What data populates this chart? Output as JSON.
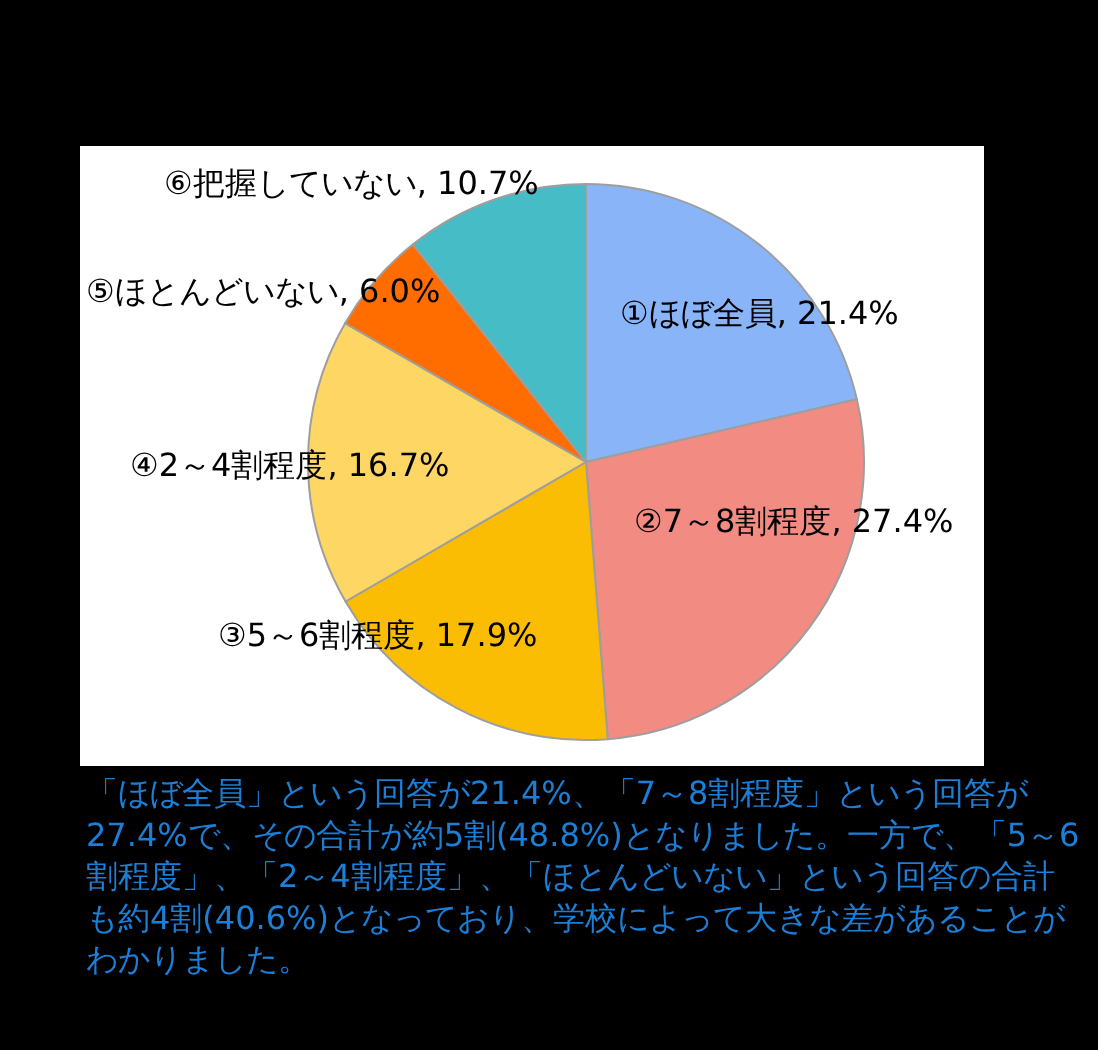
{
  "chart_data": {
    "type": "pie",
    "categories": [
      "①ほぼ全員",
      "②7～8割程度",
      "③5～6割程度",
      "④2～4割程度",
      "⑤ほとんどいない",
      "⑥把握していない"
    ],
    "values": [
      21.4,
      27.4,
      17.9,
      16.7,
      6.0,
      10.7
    ],
    "value_labels": [
      "21.4%",
      "27.4%",
      "17.9%",
      "16.7%",
      "6.0%",
      "10.7%"
    ],
    "colors": [
      "#8ab4f8",
      "#f28b82",
      "#fbbc04",
      "#fdd663",
      "#ff6d01",
      "#46bdc6"
    ],
    "annotations": [
      "「ほぼ全員」という回答が21.4%、「7～8割程度」という回答が27.4%で、その合計が約5割(48.8%)となりました。一方で、「5～6割程度」、「2～4割程度」、「ほとんどいない」という回答の合計も約4割(40.6%)となっており、学校によって大きな差があることがわかりました。"
    ]
  }
}
